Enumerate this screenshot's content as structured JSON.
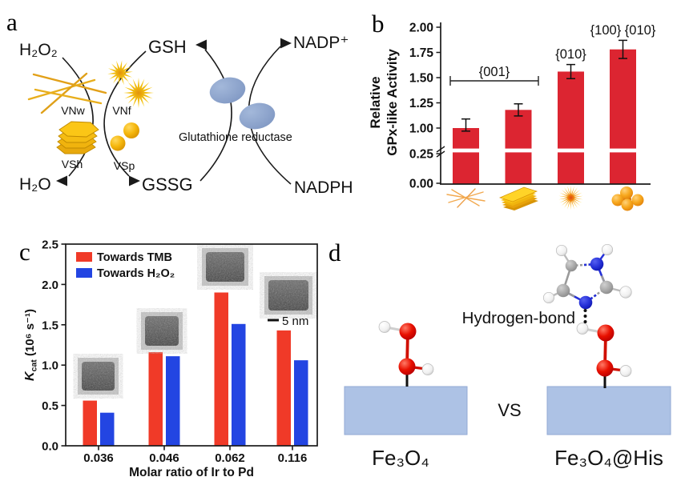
{
  "panels": {
    "a": {
      "letter": "a",
      "species": {
        "h2o2": "H₂O₂",
        "gsh": "GSH",
        "nadp": "NADP⁺",
        "h2o": "H₂O",
        "gssg": "GSSG",
        "nadph": "NADPH"
      },
      "enzyme": "Glutathione reductase",
      "nanostructures": [
        {
          "label": "VNw"
        },
        {
          "label": "VNf"
        },
        {
          "label": "VSh"
        },
        {
          "label": "VSp"
        }
      ]
    },
    "b": {
      "letter": "b",
      "ylabel_line1": "Relative",
      "ylabel_line2": "GPx-like Activity",
      "annotations": {
        "group": "{001}",
        "bar3": "{010}",
        "bar4": "{100} {010}"
      }
    },
    "c": {
      "letter": "c",
      "ylabel_k": "K",
      "ylabel_sub": "cat",
      "ylabel_rest": " (10⁶ s⁻¹)",
      "xlabel": "Molar ratio of Ir to Pd",
      "scalebar": "5 nm"
    },
    "d": {
      "letter": "d",
      "hbond_label": "Hydrogen-bond",
      "vs": "VS",
      "left_label": "Fe₃O₄",
      "right_label": "Fe₃O₄@His"
    }
  },
  "chart_data": [
    {
      "panel": "b",
      "type": "bar",
      "categories": [
        "VNw",
        "VSh",
        "VNf",
        "VSp"
      ],
      "values": [
        1.0,
        1.18,
        1.56,
        1.78
      ],
      "errors": [
        0.09,
        0.06,
        0.07,
        0.09
      ],
      "ylabel": "Relative GPx-like Activity",
      "yticks": [
        0.0,
        0.25,
        1.0,
        1.25,
        1.5,
        1.75,
        2.0
      ],
      "axis_break_between": [
        0.25,
        1.0
      ],
      "bar_color": "#dc2531",
      "annotations": [
        "{001} over bars 1-2",
        "{010} over bar 3",
        "{100} {010} over bar 4"
      ]
    },
    {
      "panel": "c",
      "type": "bar",
      "categories": [
        "0.036",
        "0.046",
        "0.062",
        "0.116"
      ],
      "series": [
        {
          "name": "Towards TMB",
          "color": "#f03a28",
          "values": [
            0.56,
            1.16,
            1.9,
            1.43
          ]
        },
        {
          "name": "Towards H₂O₂",
          "color": "#2345e2",
          "values": [
            0.41,
            1.11,
            1.51,
            1.06
          ]
        }
      ],
      "xlabel": "Molar ratio of Ir to Pd",
      "ylabel": "Kcat (10⁶ s⁻¹)",
      "ylim": [
        0,
        2.5
      ],
      "yticks": [
        0.0,
        0.5,
        1.0,
        1.5,
        2.0,
        2.5
      ]
    }
  ]
}
